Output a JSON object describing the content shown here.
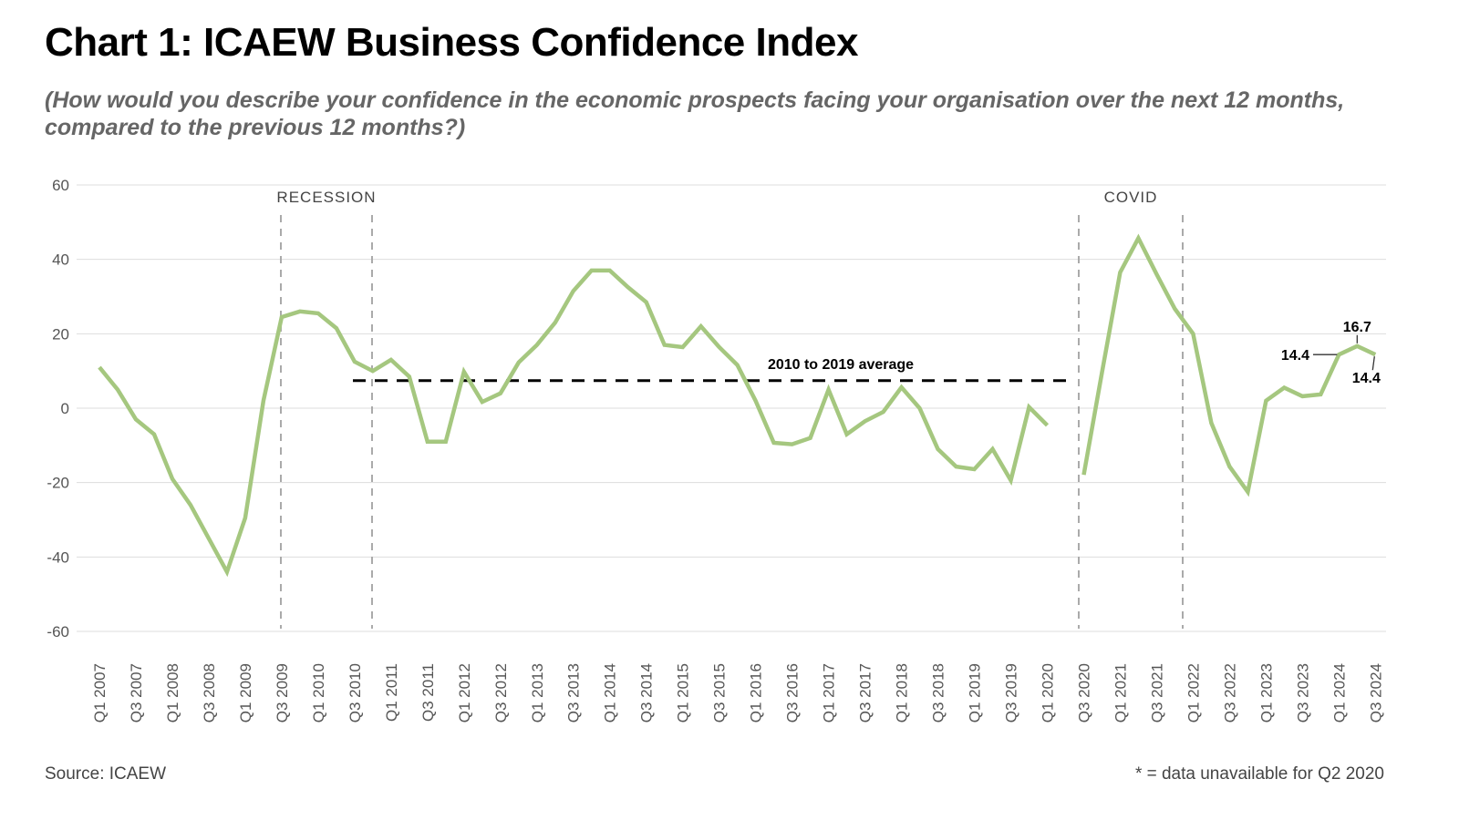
{
  "header": {
    "title": "Chart 1: ICAEW Business Confidence Index",
    "subtitle": "(How would you describe your confidence in the economic prospects facing your organisation over the next 12 months, compared to the previous 12 months?)"
  },
  "footer": {
    "source": "Source: ICAEW",
    "note": "* = data unavailable for Q2 2020"
  },
  "colors": {
    "line": "#a5c77f",
    "grid": "#dddddd",
    "average": "#000000",
    "shading_line": "#aaaaaa",
    "axis_text": "#555555"
  },
  "chart_data": {
    "type": "line",
    "title": "Chart 1: ICAEW Business Confidence Index",
    "subtitle": "(How would you describe your confidence in the economic prospects facing your organisation over the next 12 months, compared to the previous 12 months?)",
    "xlabel": "",
    "ylabel": "",
    "ylim": [
      -60,
      60
    ],
    "yticks": [
      60,
      40,
      20,
      0,
      -20,
      -40,
      -60
    ],
    "grid": true,
    "legend": "none",
    "x": [
      "Q1 2007",
      "Q2 2007",
      "Q3 2007",
      "Q4 2007",
      "Q1 2008",
      "Q2 2008",
      "Q3 2008",
      "Q4 2008",
      "Q1 2009",
      "Q2 2009",
      "Q3 2009",
      "Q4 2009",
      "Q1 2010",
      "Q2 2010",
      "Q3 2010",
      "Q4 2010",
      "Q1 2011",
      "Q2 2011",
      "Q3 2011",
      "Q4 2011",
      "Q1 2012",
      "Q2 2012",
      "Q3 2012",
      "Q4 2012",
      "Q1 2013",
      "Q2 2013",
      "Q3 2013",
      "Q4 2013",
      "Q1 2014",
      "Q2 2014",
      "Q3 2014",
      "Q4 2014",
      "Q1 2015",
      "Q2 2015",
      "Q3 2015",
      "Q4 2015",
      "Q1 2016",
      "Q2 2016",
      "Q3 2016",
      "Q4 2016",
      "Q1 2017",
      "Q2 2017",
      "Q3 2017",
      "Q4 2017",
      "Q1 2018",
      "Q2 2018",
      "Q3 2018",
      "Q4 2018",
      "Q1 2019",
      "Q2 2019",
      "Q3 2019",
      "Q4 2019",
      "Q1 2020",
      "Q2 2020",
      "Q3 2020",
      "Q4 2020",
      "Q1 2021",
      "Q2 2021",
      "Q3 2021",
      "Q4 2021",
      "Q1 2022",
      "Q2 2022",
      "Q3 2022",
      "Q4 2022",
      "Q1 2023",
      "Q2 2023",
      "Q3 2023",
      "Q4 2023",
      "Q1 2024",
      "Q2 2024",
      "Q3 2024"
    ],
    "xtick_labels": [
      "Q1 2007",
      "Q3 2007",
      "Q1 2008",
      "Q3 2008",
      "Q1 2009",
      "Q3 2009",
      "Q1 2010",
      "Q3 2010",
      "Q1 2011",
      "Q3 2011",
      "Q1 2012",
      "Q3 2012",
      "Q1 2013",
      "Q3 2013",
      "Q1 2014",
      "Q3 2014",
      "Q1 2015",
      "Q3 2015",
      "Q1 2016",
      "Q3 2016",
      "Q1 2017",
      "Q3 2017",
      "Q1 2018",
      "Q3 2018",
      "Q1 2019",
      "Q3 2019",
      "Q1 2020",
      "Q3 2020",
      "Q1 2021",
      "Q3 2021",
      "Q1 2022",
      "Q3 2022",
      "Q1 2023",
      "Q3 2023",
      "Q1 2024",
      "Q3 2024"
    ],
    "series": [
      {
        "name": "ICAEW Business Confidence Index",
        "values": [
          11,
          5,
          -3,
          -7,
          -19,
          -26,
          -35,
          -44,
          -29.5,
          2,
          24.5,
          26,
          25.5,
          21.5,
          12.5,
          10,
          13,
          8.5,
          -9,
          -9,
          9.8,
          1.7,
          4,
          12.3,
          17,
          23,
          31.5,
          37,
          37,
          32.5,
          28.5,
          17,
          16.4,
          22,
          16.4,
          11.6,
          2,
          -9.3,
          -9.7,
          -8,
          5,
          -7,
          -3.5,
          -1,
          5.6,
          0,
          -11,
          -15.7,
          -16.4,
          -11,
          -19.4,
          0.3,
          -4.6,
          null,
          -17.9,
          9.5,
          36.5,
          45.7,
          36,
          26.7,
          20,
          -4,
          -15.7,
          -22.5,
          2,
          5.5,
          3.2,
          3.7,
          14.4,
          16.7,
          14.4
        ]
      }
    ],
    "average": {
      "label": "2010 to 2019 average",
      "value": 7.4,
      "from": "Q3 2010",
      "to": "Q3 2020"
    },
    "periods": [
      {
        "label": "RECESSION",
        "from": "Q3 2009",
        "to": "Q4 2010"
      },
      {
        "label": "COVID",
        "from": "Q3 2020",
        "to": "Q1 2022"
      }
    ],
    "data_labels": [
      {
        "x": "Q1 2024",
        "text": "14.4"
      },
      {
        "x": "Q2 2024",
        "text": "16.7"
      },
      {
        "x": "Q3 2024",
        "text": "14.4"
      }
    ]
  }
}
